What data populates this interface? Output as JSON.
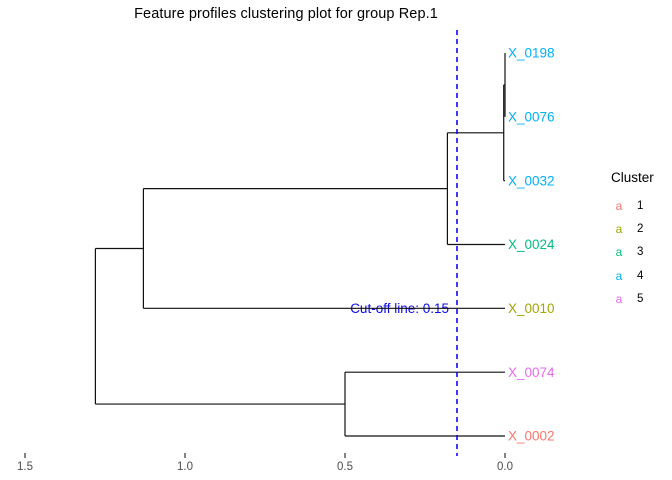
{
  "chart_data": {
    "type": "dendrogram",
    "title": "Feature profiles clustering plot for group Rep.1",
    "orientation": "horizontal, leaves on right, scale decreasing to the right",
    "x_axis": {
      "tick_labels": [
        "1.5",
        "1.0",
        "0.5",
        "0.0"
      ],
      "tick_values": [
        1.5,
        1.0,
        0.5,
        0.0
      ],
      "range": [
        1.55,
        0.0
      ]
    },
    "leaves": [
      {
        "label": "X_0198",
        "cluster": "4"
      },
      {
        "label": "X_0076",
        "cluster": "4"
      },
      {
        "label": "X_0032",
        "cluster": "4"
      },
      {
        "label": "X_0024",
        "cluster": "3"
      },
      {
        "label": "X_0010",
        "cluster": "2"
      },
      {
        "label": "X_0074",
        "cluster": "5"
      },
      {
        "label": "X_0002",
        "cluster": "1"
      }
    ],
    "merges": [
      {
        "children": [
          "L0",
          "L1"
        ],
        "height": 0.0
      },
      {
        "children": [
          "M0",
          "L2"
        ],
        "height": 0.004
      },
      {
        "children": [
          "M1",
          "L3"
        ],
        "height": 0.18
      },
      {
        "children": [
          "M2",
          "L4"
        ],
        "height": 1.13
      },
      {
        "children": [
          "L5",
          "L6"
        ],
        "height": 0.5
      },
      {
        "children": [
          "M3",
          "M4"
        ],
        "height": 1.28
      }
    ],
    "cutoff": {
      "label": "Cut-off line: 0.15",
      "value": 0.15
    },
    "clusters": {
      "title": "Cluster",
      "entries": [
        {
          "key": "a",
          "label": "1",
          "color": "#F8766D"
        },
        {
          "key": "a",
          "label": "2",
          "color": "#A3A500"
        },
        {
          "key": "a",
          "label": "3",
          "color": "#00BF7D"
        },
        {
          "key": "a",
          "label": "4",
          "color": "#00B0F6"
        },
        {
          "key": "a",
          "label": "5",
          "color": "#E76BF3"
        }
      ]
    },
    "colors": {
      "branch_line": "#111111",
      "cutoff_blue": "#0B0BEE",
      "axis_tick": "#333333",
      "axis_text": "#4D4D4D",
      "title_text": "#000000"
    },
    "legend_position": "right, vertically centered",
    "grid": "off"
  }
}
